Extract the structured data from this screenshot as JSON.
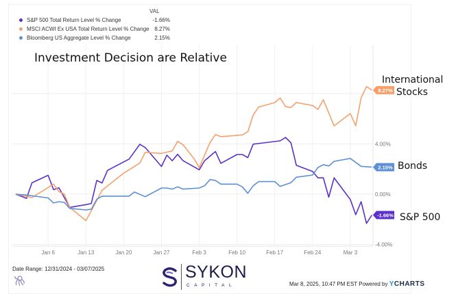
{
  "legend": {
    "header": "VAL",
    "items": [
      {
        "name": "S&P 500 Total Return Level % Change",
        "value": "-1.66%",
        "color": "#5b2fc9"
      },
      {
        "name": "MSCI ACWI Ex USA Total Return Level % Change",
        "value": "8.27%",
        "color": "#f5a06a"
      },
      {
        "name": "Bloomberg US Aggregate Level % Change",
        "value": "2.15%",
        "color": "#5b8fd6"
      }
    ]
  },
  "annotations": {
    "title": "Investment Decision are Relative",
    "intl_line1": "International",
    "intl_line2": "Stocks",
    "bonds": "Bonds",
    "sp500": "S&P 500"
  },
  "footer": {
    "date_range": "Date Range: 12/31/2024 - 03/07/2025",
    "timestamp": "Mar 8, 2025, 10:47 PM EST Powered by",
    "ycharts_y": "Y",
    "ycharts_rest": "CHARTS",
    "logo_word": "SYKON",
    "logo_sub": "CAPITAL"
  },
  "chart_data": {
    "type": "line",
    "title": "Investment Decision are Relative",
    "x_unit": "calendar days since 2024-12-31",
    "xlim": [
      0,
      66
    ],
    "ylim": [
      -4,
      9
    ],
    "y_ticks": [
      {
        "v": 4,
        "label": "4.00%"
      },
      {
        "v": 0,
        "label": "0.00%"
      },
      {
        "v": -4,
        "label": "-4.00%"
      }
    ],
    "x_ticks": [
      {
        "d": 6,
        "label": "Jan 6"
      },
      {
        "d": 13,
        "label": "Jan 13"
      },
      {
        "d": 20,
        "label": "Jan 20"
      },
      {
        "d": 27,
        "label": "Jan 27"
      },
      {
        "d": 34,
        "label": "Feb 3"
      },
      {
        "d": 41,
        "label": "Feb 10"
      },
      {
        "d": 48,
        "label": "Feb 17"
      },
      {
        "d": 55,
        "label": "Feb 24"
      },
      {
        "d": 62,
        "label": "Mar 3"
      }
    ],
    "grid": true,
    "series": [
      {
        "name": "S&P 500 Total Return Level % Change",
        "color": "#5b2fc9",
        "end_label": "-1.66%",
        "points": [
          [
            0,
            0
          ],
          [
            2,
            -0.33
          ],
          [
            3,
            0.9
          ],
          [
            6,
            1.5
          ],
          [
            7,
            0.36
          ],
          [
            8,
            0.5
          ],
          [
            10,
            -1.05
          ],
          [
            13,
            -0.83
          ],
          [
            14,
            -0.74
          ],
          [
            15,
            1.09
          ],
          [
            16,
            0.89
          ],
          [
            17,
            1.89
          ],
          [
            21,
            2.79
          ],
          [
            23,
            3.97
          ],
          [
            24,
            3.7
          ],
          [
            27,
            2.2
          ],
          [
            28,
            3.1
          ],
          [
            29,
            2.66
          ],
          [
            30,
            3.17
          ],
          [
            31,
            2.66
          ],
          [
            34,
            1.94
          ],
          [
            35,
            2.66
          ],
          [
            37,
            3.39
          ],
          [
            38,
            2.45
          ],
          [
            41,
            3.15
          ],
          [
            42,
            3.15
          ],
          [
            43,
            2.9
          ],
          [
            44,
            3.98
          ],
          [
            49,
            4.24
          ],
          [
            50,
            4.51
          ],
          [
            51,
            4.08
          ],
          [
            52,
            2.3
          ],
          [
            55,
            1.81
          ],
          [
            56,
            1.3
          ],
          [
            57,
            1.3
          ],
          [
            58,
            -0.24
          ],
          [
            59,
            1.3
          ],
          [
            62,
            -0.42
          ],
          [
            63,
            -1.63
          ],
          [
            64,
            -0.6
          ],
          [
            65,
            -2.32
          ],
          [
            66,
            -1.66
          ]
        ]
      },
      {
        "name": "MSCI ACWI Ex USA Total Return Level % Change",
        "color": "#f5a06a",
        "end_label": "8.27%",
        "points": [
          [
            0,
            0
          ],
          [
            3,
            -0.27
          ],
          [
            7,
            0.8
          ],
          [
            8,
            0.2
          ],
          [
            9,
            0
          ],
          [
            10,
            -1.05
          ],
          [
            13,
            -2.1
          ],
          [
            14,
            -1.32
          ],
          [
            16,
            0.31
          ],
          [
            20,
            1.67
          ],
          [
            23,
            2.48
          ],
          [
            24,
            3.33
          ],
          [
            27,
            3.24
          ],
          [
            29,
            3.44
          ],
          [
            30,
            4.2
          ],
          [
            31,
            3.93
          ],
          [
            33,
            2.84
          ],
          [
            34,
            2.12
          ],
          [
            36,
            4.11
          ],
          [
            37,
            4.74
          ],
          [
            38,
            4.57
          ],
          [
            42,
            4.71
          ],
          [
            43,
            4.96
          ],
          [
            44,
            6.29
          ],
          [
            45,
            6.92
          ],
          [
            48,
            7.28
          ],
          [
            49,
            7.65
          ],
          [
            50,
            6.96
          ],
          [
            51,
            6.89
          ],
          [
            52,
            7.28
          ],
          [
            55,
            7.05
          ],
          [
            56,
            6.74
          ],
          [
            57,
            7.5
          ],
          [
            59,
            5.43
          ],
          [
            62,
            6.41
          ],
          [
            63,
            5.43
          ],
          [
            64,
            7.65
          ],
          [
            65,
            8.55
          ],
          [
            66,
            8.27
          ]
        ]
      },
      {
        "name": "Bloomberg US Aggregate Level % Change",
        "color": "#5b8fd6",
        "end_label": "2.15%",
        "points": [
          [
            0,
            0
          ],
          [
            2,
            -0.07
          ],
          [
            6,
            -0.3
          ],
          [
            7,
            -0.7
          ],
          [
            8,
            -0.6
          ],
          [
            9,
            -0.65
          ],
          [
            10,
            -1.13
          ],
          [
            13,
            -1.25
          ],
          [
            14,
            -1.2
          ],
          [
            15,
            -0.4
          ],
          [
            16,
            -0.16
          ],
          [
            21,
            -0.16
          ],
          [
            22,
            0.17
          ],
          [
            24,
            -0.2
          ],
          [
            27,
            0.49
          ],
          [
            28,
            0.49
          ],
          [
            29,
            0.4
          ],
          [
            30,
            0.58
          ],
          [
            31,
            0.4
          ],
          [
            34,
            0.49
          ],
          [
            35,
            0.67
          ],
          [
            36,
            1.16
          ],
          [
            37,
            1.09
          ],
          [
            38,
            0.8
          ],
          [
            41,
            0.8
          ],
          [
            42,
            0.58
          ],
          [
            43,
            0.07
          ],
          [
            44,
            0.67
          ],
          [
            45,
            1.0
          ],
          [
            48,
            1.0
          ],
          [
            49,
            0.62
          ],
          [
            51,
            0.92
          ],
          [
            52,
            1.35
          ],
          [
            55,
            1.52
          ],
          [
            56,
            2.12
          ],
          [
            57,
            2.35
          ],
          [
            58,
            2.24
          ],
          [
            59,
            2.61
          ],
          [
            62,
            2.84
          ],
          [
            64,
            2.21
          ],
          [
            66,
            2.15
          ]
        ]
      }
    ]
  }
}
